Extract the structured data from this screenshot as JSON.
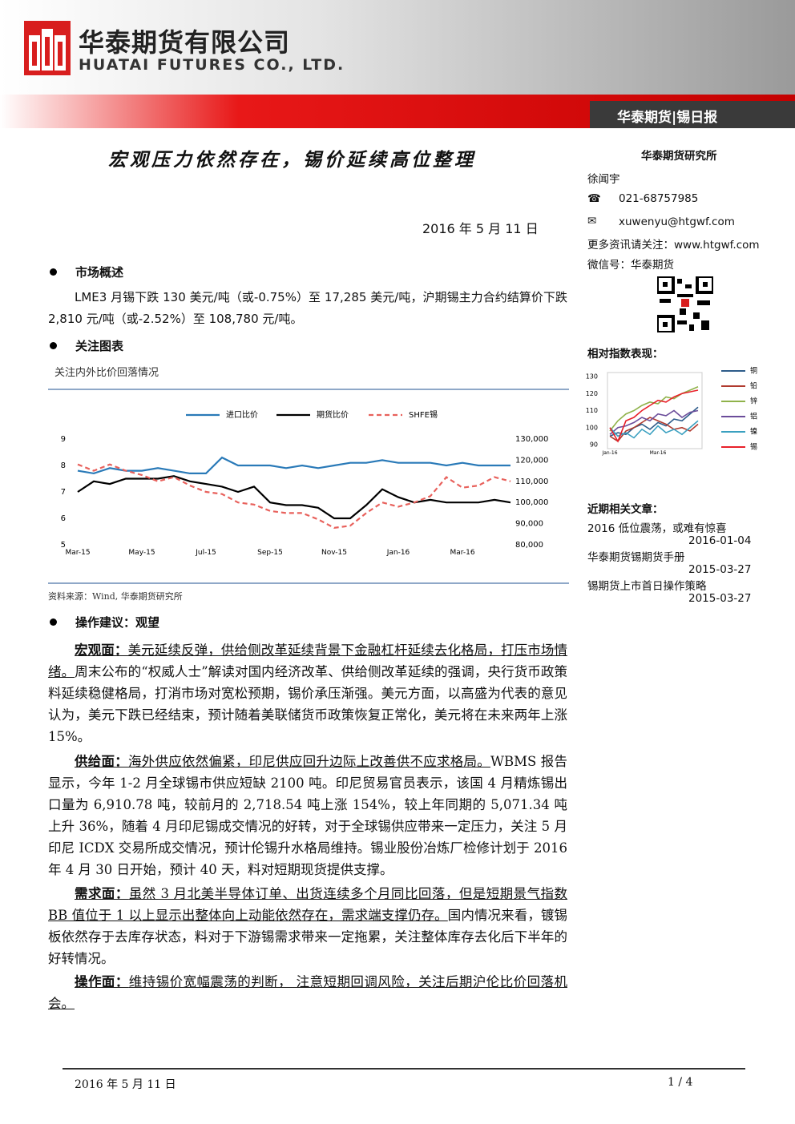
{
  "header": {
    "company_cn": "华泰期货有限公司",
    "company_en": "HUATAI FUTURES CO., LTD.",
    "report_tag": "华泰期货|锡日报"
  },
  "title": "宏观压力依然存在，锡价延续高位整理",
  "date": "2016 年 5 月 11 日",
  "sections": [
    {
      "heading": "市场概述",
      "paragraph": "LME3 月锡下跌 130 美元/吨（或-0.75%）至 17,285 美元/吨，沪期锡主力合约结算价下跌 2,810 元/吨（或-2.52%）至 108,780 元/吨。"
    },
    {
      "heading": "关注图表",
      "caption": "关注内外比价回落情况",
      "source": "资料来源：Wind, 华泰期货研究所"
    },
    {
      "heading": "操作建议：观望",
      "paragraphs": [
        {
          "label": "宏观面：",
          "underlined": "美元延续反弹，供给侧改革延续背景下金融杠杆延续去化格局，打压市场情绪。",
          "text": "周末公布的“权威人士”解读对国内经济改革、供给侧改革延续的强调，央行货币政策料延续稳健格局，打消市场对宽松预期，锡价承压渐强。美元方面，以高盛为代表的意见认为，美元下跌已经结束，预计随着美联储货币政策恢复正常化，美元将在未来两年上涨 15%。"
        },
        {
          "label": "供给面：",
          "underlined": "海外供应依然偏紧，印尼供应回升边际上改善供不应求格局。",
          "text": "WBMS 报告显示，今年 1-2 月全球锡市供应短缺 2100 吨。印尼贸易官员表示，该国 4 月精炼锡出口量为 6,910.78 吨，较前月的 2,718.54 吨上涨 154%，较上年同期的 5,071.34 吨上升 36%，随着 4 月印尼锡成交情况的好转，对于全球锡供应带来一定压力，关注 5 月印尼 ICDX 交易所成交情况，预计伦锡升水格局维持。锡业股份冶炼厂检修计划于 2016 年 4 月 30 日开始，预计 40 天，料对短期现货提供支撑。"
        },
        {
          "label": "需求面：",
          "underlined": "虽然 3 月北美半导体订单、出货连续多个月同比回落，但是短期景气指数 BB 值位于 1 以上显示出整体向上动能依然存在，需求端支撑仍存。",
          "text": "国内情况来看，镀锡板依然存于去库存状态，料对于下游锡需求带来一定拖累，关注整体库存去化后下半年的好转情况。"
        },
        {
          "label": "操作面：",
          "underlined": "维持锡价宽幅震荡的判断， 注意短期回调风险，关注后期沪伦比价回落机会。"
        }
      ]
    }
  ],
  "sidebar": {
    "institute": "华泰期货研究所",
    "analyst": "徐闻宇",
    "phone": "021-68757985",
    "email": "xuwenyu@htgwf.com",
    "website": "更多资讯请关注：www.htgwf.com",
    "wechat": "微信号：华泰期货",
    "index_title": "相对指数表现：",
    "articles_title": "近期相关文章：",
    "articles": [
      {
        "title": "2016 低位震荡，或难有惊喜",
        "date": "2016-01-04"
      },
      {
        "title": "华泰期货锡期货手册",
        "date": "2015-03-27"
      },
      {
        "title": "锡期货上市首日操作策略",
        "date": "2015-03-27"
      }
    ]
  },
  "footer": {
    "date": "2016 年 5 月 11 日",
    "page": "1 / 4"
  },
  "chart_data": [
    {
      "type": "line",
      "categories": [
        "Mar-15",
        null,
        null,
        null,
        "May-15",
        null,
        null,
        null,
        "Jul-15",
        null,
        null,
        null,
        "Sep-15",
        null,
        null,
        null,
        "Nov-15",
        null,
        null,
        null,
        "Jan-16",
        null,
        null,
        null,
        "Mar-16",
        null,
        null,
        null
      ],
      "ylim": [
        5,
        9
      ],
      "yticks": [
        5,
        6,
        7,
        8,
        9
      ],
      "y2lim": [
        80000,
        130000
      ],
      "y2ticks": [
        {
          "value": 80000,
          "label": "80,000"
        },
        {
          "value": 90000,
          "label": "90,000"
        },
        {
          "value": 100000,
          "label": "100,000"
        },
        {
          "value": 110000,
          "label": "110,000"
        },
        {
          "value": 120000,
          "label": "120,000"
        },
        {
          "value": 130000,
          "label": "130,000"
        }
      ],
      "legend": "top",
      "series": [
        {
          "name": "进口比价",
          "color": "#2a7ab8",
          "values": [
            7.8,
            7.7,
            7.9,
            7.8,
            7.8,
            7.9,
            7.8,
            7.7,
            7.7,
            8.3,
            8.0,
            8.0,
            8.0,
            7.9,
            8.0,
            7.9,
            8.0,
            8.1,
            8.1,
            8.2,
            8.1,
            8.1,
            8.1,
            8.0,
            8.1,
            8.0,
            8.0,
            8.0
          ]
        },
        {
          "name": "期货比价",
          "color": "#000000",
          "values": [
            7.0,
            7.4,
            7.3,
            7.5,
            7.5,
            7.5,
            7.6,
            7.4,
            7.3,
            7.2,
            7.0,
            7.2,
            6.6,
            6.5,
            6.5,
            6.4,
            6.0,
            6.0,
            6.5,
            7.1,
            6.8,
            6.6,
            6.7,
            6.6,
            6.6,
            6.6,
            6.7,
            6.6
          ]
        },
        {
          "name": "SHFE锡",
          "color": "#e8615c",
          "dashed": true,
          "axis": "y2",
          "values": [
            118000,
            115000,
            118000,
            115000,
            113000,
            110000,
            112000,
            108000,
            105000,
            104000,
            100000,
            99000,
            96000,
            95000,
            95000,
            92000,
            88000,
            89000,
            95000,
            100000,
            98000,
            100000,
            103000,
            112000,
            107000,
            108000,
            112000,
            110000
          ]
        }
      ]
    },
    {
      "type": "line",
      "categories": [
        "Jan-16",
        null,
        null,
        null,
        null,
        null,
        "Mar-16",
        null,
        null,
        null,
        null,
        null
      ],
      "ylim": [
        90,
        130
      ],
      "yticks": [
        90,
        100,
        110,
        120,
        130
      ],
      "legend": "right",
      "series": [
        {
          "name": "铜",
          "color": "#2e5c8a",
          "values": [
            95,
            97,
            96,
            100,
            102,
            99,
            103,
            101,
            105,
            104,
            108,
            112
          ]
        },
        {
          "name": "铅",
          "color": "#b03a2e",
          "values": [
            95,
            92,
            98,
            100,
            103,
            106,
            104,
            102,
            99,
            100,
            98,
            102
          ]
        },
        {
          "name": "锌",
          "color": "#8fb24a",
          "values": [
            98,
            104,
            108,
            110,
            113,
            115,
            114,
            118,
            117,
            120,
            122,
            124
          ]
        },
        {
          "name": "铝",
          "color": "#6b4c9a",
          "values": [
            96,
            100,
            101,
            103,
            106,
            104,
            108,
            107,
            110,
            106,
            109,
            110
          ]
        },
        {
          "name": "镍",
          "color": "#3aa0c0",
          "values": [
            100,
            95,
            97,
            94,
            99,
            96,
            101,
            97,
            99,
            96,
            100,
            104
          ]
        },
        {
          "name": "锡",
          "color": "#e8202a",
          "values": [
            100,
            92,
            104,
            106,
            110,
            113,
            116,
            115,
            118,
            120,
            121,
            122
          ]
        }
      ]
    }
  ]
}
